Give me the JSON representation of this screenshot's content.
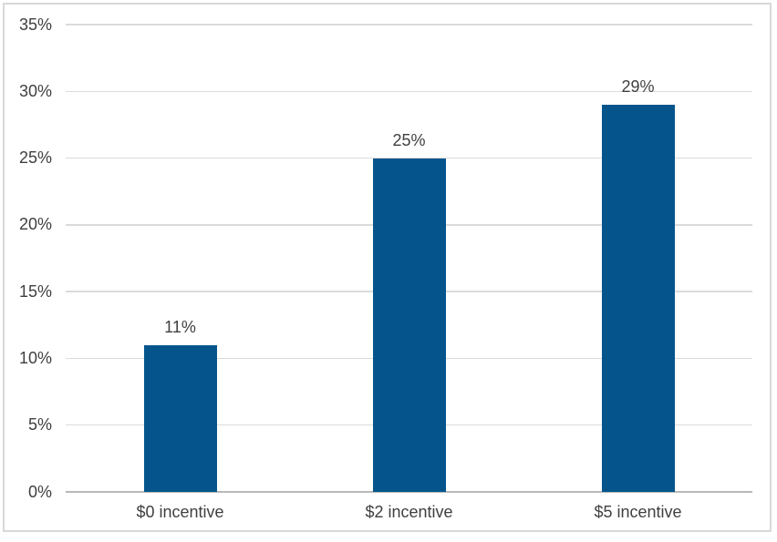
{
  "chart_data": {
    "type": "bar",
    "categories": [
      "$0 incentive",
      "$2 incentive",
      "$5 incentive"
    ],
    "values": [
      11,
      25,
      29
    ],
    "value_labels": [
      "11%",
      "25%",
      "29%"
    ],
    "title": "",
    "xlabel": "",
    "ylabel": "",
    "ylim": [
      0,
      35
    ],
    "ytick_step": 5,
    "ytick_labels": [
      "0%",
      "5%",
      "10%",
      "15%",
      "20%",
      "25%",
      "30%",
      "35%"
    ],
    "grid": true,
    "legend": false
  },
  "colors": {
    "bar": "#05558c",
    "gridline": "#dbdbdb",
    "axis_line": "#b9b9b9",
    "text": "#404040",
    "frame_border": "#d8d8d8",
    "background": "#ffffff"
  }
}
